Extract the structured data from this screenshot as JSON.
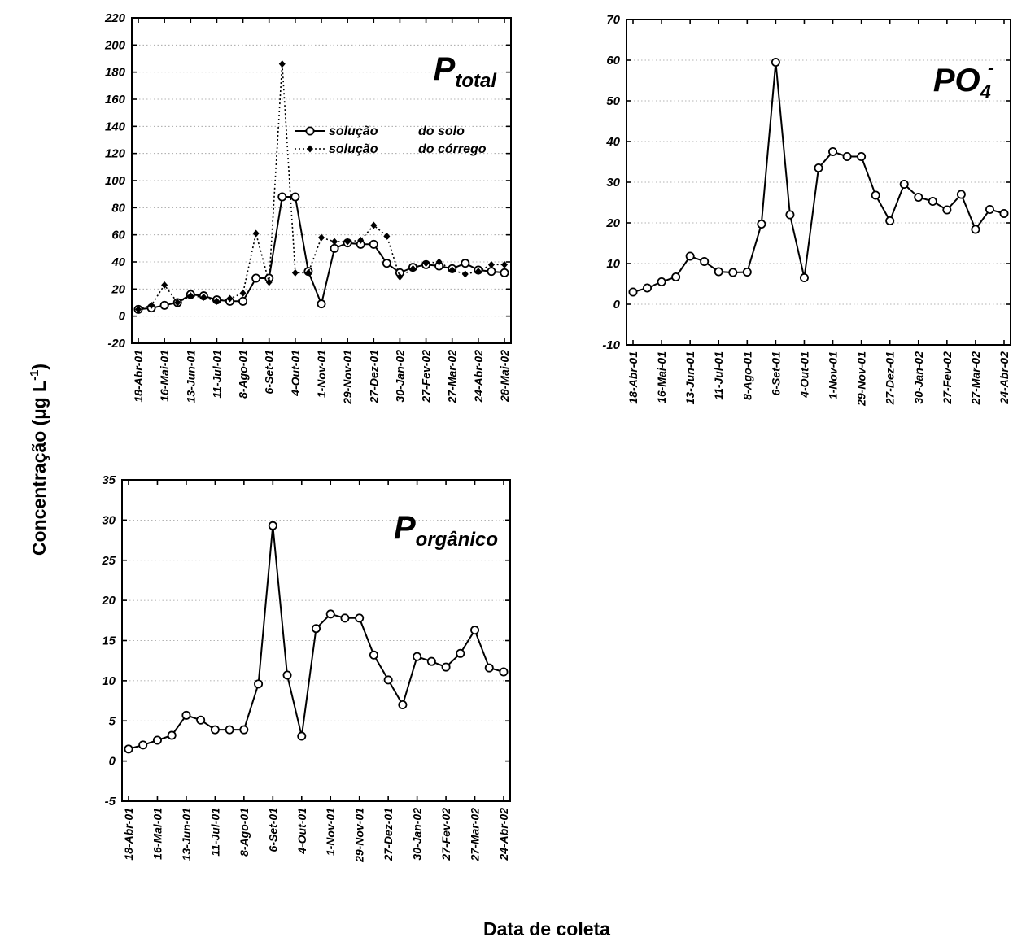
{
  "figure": {
    "ylabel": "Concentração (µg L",
    "ylabel_sup": "-1",
    "ylabel_close": ")",
    "xlabel": "Data de coleta"
  },
  "chart_data": [
    {
      "id": "ptotal",
      "type": "line",
      "title_main": "P",
      "title_sub": "total",
      "ylim": [
        -20,
        220
      ],
      "yticks": [
        -20,
        0,
        20,
        40,
        60,
        80,
        100,
        120,
        140,
        160,
        180,
        200,
        220
      ],
      "grid": true,
      "legend_position": "center-right",
      "categories": [
        "18-Abr-01",
        "16-Mai-01",
        "13-Jun-01",
        "11-Jul-01",
        "8-Ago-01",
        "6-Set-01",
        "4-Out-01",
        "1-Nov-01",
        "29-Nov-01",
        "27-Dez-01",
        "30-Jan-02",
        "27-Fev-02",
        "27-Mar-02",
        "24-Abr-02",
        "28-Mai-02"
      ],
      "series": [
        {
          "name": "solução      do solo",
          "legend_a": "solução",
          "legend_b": "do solo",
          "marker": "open-circle",
          "line": "solid",
          "x": [
            0,
            0.5,
            1,
            1.5,
            2,
            2.5,
            3,
            3.5,
            4,
            4.5,
            5,
            5.5,
            6,
            6.5,
            7,
            7.5,
            8,
            8.5,
            9,
            9.5,
            10,
            10.5,
            11,
            11.5,
            12,
            12.5,
            13,
            13.5,
            14
          ],
          "values": [
            5,
            6,
            8,
            10,
            16,
            15,
            12,
            11,
            11,
            28,
            28,
            88,
            88,
            33,
            9,
            50,
            54,
            53,
            53,
            39,
            32,
            36,
            38,
            37,
            35,
            39,
            34,
            33,
            32
          ]
        },
        {
          "name": "solução      do córrego",
          "legend_a": "solução",
          "legend_b": "do córrego",
          "marker": "filled-diamond",
          "line": "dotted",
          "x": [
            0,
            0.5,
            1,
            1.5,
            2,
            2.5,
            3,
            3.5,
            4,
            4.5,
            5,
            5.5,
            6,
            6.5,
            7,
            7.5,
            8,
            8.5,
            9,
            9.5,
            10,
            10.5,
            11,
            11.5,
            12,
            12.5,
            13,
            13.5,
            14
          ],
          "values": [
            5,
            8,
            23,
            10,
            15,
            14,
            11,
            13,
            17,
            61,
            25,
            186,
            32,
            32,
            58,
            55,
            55,
            56,
            67,
            59,
            29,
            35,
            39,
            40,
            34,
            31,
            33,
            38,
            38
          ]
        }
      ]
    },
    {
      "id": "po4",
      "type": "line",
      "title_main": "PO",
      "title_sub": "4",
      "title_sup": "-",
      "ylim": [
        -10,
        70
      ],
      "yticks": [
        -10,
        0,
        10,
        20,
        30,
        40,
        50,
        60,
        70
      ],
      "grid": true,
      "categories": [
        "18-Abr-01",
        "16-Mai-01",
        "13-Jun-01",
        "11-Jul-01",
        "8-Ago-01",
        "6-Set-01",
        "4-Out-01",
        "1-Nov-01",
        "29-Nov-01",
        "27-Dez-01",
        "30-Jan-02",
        "27-Fev-02",
        "27-Mar-02",
        "24-Abr-02"
      ],
      "series": [
        {
          "marker": "open-circle",
          "line": "solid",
          "x": [
            0,
            0.5,
            1,
            1.5,
            2,
            2.5,
            3,
            3.5,
            4,
            4.5,
            5,
            5.5,
            6,
            6.5,
            7,
            7.5,
            8,
            8.5,
            9,
            9.5,
            10,
            10.5,
            11,
            11.5,
            12,
            12.5,
            13
          ],
          "values": [
            3,
            4,
            5.5,
            6.7,
            11.8,
            10.5,
            8,
            7.8,
            7.9,
            19.7,
            59.5,
            22,
            6.5,
            33.5,
            37.5,
            36.3,
            36.3,
            26.8,
            20.5,
            29.5,
            26.3,
            25.3,
            23.2,
            27,
            18.4,
            23.3,
            22.3
          ]
        }
      ]
    },
    {
      "id": "porganico",
      "type": "line",
      "title_main": "P",
      "title_sub": "orgânico",
      "ylim": [
        -5,
        35
      ],
      "yticks": [
        -5,
        0,
        5,
        10,
        15,
        20,
        25,
        30,
        35
      ],
      "grid": true,
      "categories": [
        "18-Abr-01",
        "16-Mai-01",
        "13-Jun-01",
        "11-Jul-01",
        "8-Ago-01",
        "6-Set-01",
        "4-Out-01",
        "1-Nov-01",
        "29-Nov-01",
        "27-Dez-01",
        "30-Jan-02",
        "27-Fev-02",
        "27-Mar-02",
        "24-Abr-02"
      ],
      "series": [
        {
          "marker": "open-circle",
          "line": "solid",
          "x": [
            0,
            0.5,
            1,
            1.5,
            2,
            2.5,
            3,
            3.5,
            4,
            4.5,
            5,
            5.5,
            6,
            6.5,
            7,
            7.5,
            8,
            8.5,
            9,
            9.5,
            10,
            10.5,
            11,
            11.5,
            12,
            12.5,
            13
          ],
          "values": [
            1.5,
            2,
            2.6,
            3.2,
            5.7,
            5.1,
            3.9,
            3.9,
            3.9,
            9.6,
            29.3,
            10.7,
            3.1,
            16.5,
            18.3,
            17.8,
            17.8,
            13.2,
            10.1,
            7,
            13,
            12.4,
            11.7,
            13.4,
            16.3,
            11.6,
            11.1
          ]
        }
      ]
    }
  ]
}
